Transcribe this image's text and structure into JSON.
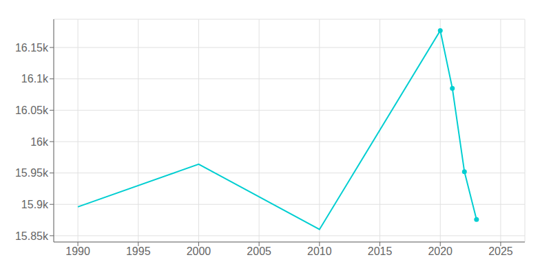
{
  "chart_data": {
    "type": "line",
    "x": [
      1990,
      2000,
      2010,
      2020,
      2021,
      2022,
      2023
    ],
    "series": [
      {
        "type": "line",
        "color": "#00CED1",
        "values": [
          15896,
          15964,
          15860,
          16177,
          16085,
          15952,
          15876
        ]
      },
      {
        "type": "scatter",
        "marker": "circle",
        "color": "#00CED1",
        "values": [
          null,
          null,
          null,
          16177,
          16085,
          15952,
          15876
        ]
      }
    ],
    "xlim": [
      1988,
      2027
    ],
    "xticks": [
      1990,
      1995,
      2000,
      2005,
      2010,
      2015,
      2020,
      2025
    ],
    "ylim": [
      15840,
      16195
    ],
    "yticks": [
      {
        "value": 15850,
        "label": "15.85k"
      },
      {
        "value": 15900,
        "label": "15.9k"
      },
      {
        "value": 15950,
        "label": "15.95k"
      },
      {
        "value": 16000,
        "label": "16k"
      },
      {
        "value": 16050,
        "label": "16.05k"
      },
      {
        "value": 16100,
        "label": "16.1k"
      },
      {
        "value": 16150,
        "label": "16.15k"
      }
    ],
    "grid": true
  }
}
